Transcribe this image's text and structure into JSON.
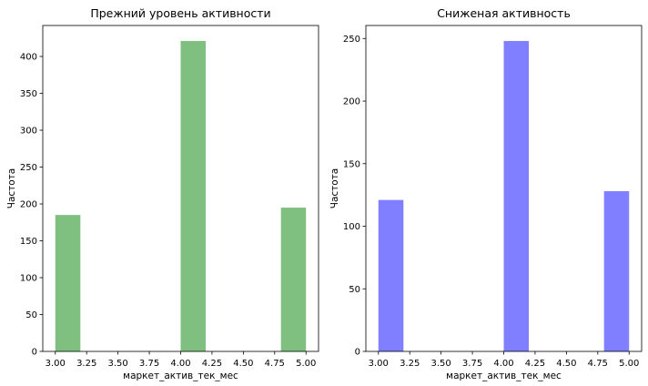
{
  "chart_data": [
    {
      "type": "bar",
      "title": "Прежний уровень активности",
      "xlabel": "маркет_актив_тек_мес",
      "ylabel": "Частота",
      "color": "#008000",
      "opacity": 0.5,
      "bins": [
        {
          "x0": 3.0,
          "x1": 3.2,
          "value": 185
        },
        {
          "x0": 3.2,
          "x1": 3.4,
          "value": 0
        },
        {
          "x0": 3.4,
          "x1": 3.6,
          "value": 0
        },
        {
          "x0": 3.6,
          "x1": 3.8,
          "value": 0
        },
        {
          "x0": 3.8,
          "x1": 4.0,
          "value": 0
        },
        {
          "x0": 4.0,
          "x1": 4.2,
          "value": 421
        },
        {
          "x0": 4.2,
          "x1": 4.4,
          "value": 0
        },
        {
          "x0": 4.4,
          "x1": 4.6,
          "value": 0
        },
        {
          "x0": 4.6,
          "x1": 4.8,
          "value": 0
        },
        {
          "x0": 4.8,
          "x1": 5.0,
          "value": 195
        }
      ],
      "xlim": [
        2.9,
        5.1
      ],
      "ylim": [
        0,
        442
      ],
      "xticks": [
        3.0,
        3.25,
        3.5,
        3.75,
        4.0,
        4.25,
        4.5,
        4.75,
        5.0
      ],
      "xtick_labels": [
        "3.00",
        "3.25",
        "3.50",
        "3.75",
        "4.00",
        "4.25",
        "4.50",
        "4.75",
        "5.00"
      ],
      "yticks": [
        0,
        50,
        100,
        150,
        200,
        250,
        300,
        350,
        400
      ],
      "ytick_labels": [
        "0",
        "50",
        "100",
        "150",
        "200",
        "250",
        "300",
        "350",
        "400"
      ],
      "grid": false
    },
    {
      "type": "bar",
      "title": "Сниженая активность",
      "xlabel": "маркет_актив_тек_мес",
      "ylabel": "Частота",
      "color": "#0000ff",
      "opacity": 0.5,
      "bins": [
        {
          "x0": 3.0,
          "x1": 3.2,
          "value": 121
        },
        {
          "x0": 3.2,
          "x1": 3.4,
          "value": 0
        },
        {
          "x0": 3.4,
          "x1": 3.6,
          "value": 0
        },
        {
          "x0": 3.6,
          "x1": 3.8,
          "value": 0
        },
        {
          "x0": 3.8,
          "x1": 4.0,
          "value": 0
        },
        {
          "x0": 4.0,
          "x1": 4.2,
          "value": 248
        },
        {
          "x0": 4.2,
          "x1": 4.4,
          "value": 0
        },
        {
          "x0": 4.4,
          "x1": 4.6,
          "value": 0
        },
        {
          "x0": 4.6,
          "x1": 4.8,
          "value": 0
        },
        {
          "x0": 4.8,
          "x1": 5.0,
          "value": 128
        }
      ],
      "xlim": [
        2.9,
        5.1
      ],
      "ylim": [
        0,
        260.4
      ],
      "xticks": [
        3.0,
        3.25,
        3.5,
        3.75,
        4.0,
        4.25,
        4.5,
        4.75,
        5.0
      ],
      "xtick_labels": [
        "3.00",
        "3.25",
        "3.50",
        "3.75",
        "4.00",
        "4.25",
        "4.50",
        "4.75",
        "5.00"
      ],
      "yticks": [
        0,
        50,
        100,
        150,
        200,
        250
      ],
      "ytick_labels": [
        "0",
        "50",
        "100",
        "150",
        "200",
        "250"
      ],
      "grid": false
    }
  ]
}
